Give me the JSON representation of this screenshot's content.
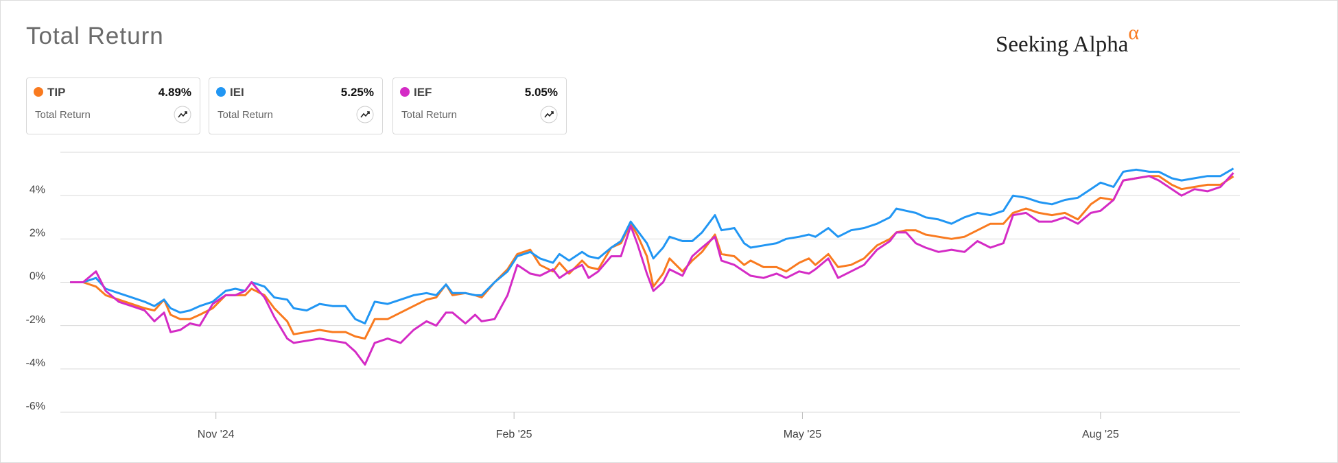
{
  "chart_data": {
    "type": "line",
    "title": "Total Return",
    "brand": "Seeking Alpha",
    "brand_mark": "α",
    "legend_caption": "Total Return",
    "x": [
      3,
      7,
      11,
      14,
      18,
      22,
      26,
      29,
      32,
      34,
      37,
      40,
      43,
      47,
      51,
      54,
      57,
      59,
      63,
      66,
      70,
      72,
      76,
      80,
      84,
      88,
      91,
      94,
      97,
      101,
      105,
      109,
      113,
      116,
      119,
      121,
      125,
      128,
      130,
      134,
      138,
      141,
      145,
      148,
      152,
      154,
      157,
      161,
      163,
      166,
      170,
      173,
      176,
      178,
      181,
      183,
      186,
      188,
      192,
      195,
      198,
      202,
      204,
      208,
      211,
      213,
      217,
      221,
      224,
      228,
      231,
      233,
      237,
      240,
      244,
      248,
      252,
      256,
      258,
      261,
      264,
      267,
      271,
      275,
      279,
      283,
      287,
      291,
      294,
      298,
      302,
      306,
      310,
      314,
      318,
      321,
      325,
      328,
      332,
      336,
      339,
      343,
      346,
      350,
      354,
      358,
      362
    ],
    "xlim": [
      0,
      364
    ],
    "xticks": [
      {
        "value": 48,
        "label": "Nov '24"
      },
      {
        "value": 140,
        "label": "Feb '25"
      },
      {
        "value": 229,
        "label": "May '25"
      },
      {
        "value": 321,
        "label": "Aug '25"
      }
    ],
    "ylim": [
      -6,
      6
    ],
    "yticks": [
      {
        "value": -6,
        "label": "-6%"
      },
      {
        "value": -4,
        "label": "-4%"
      },
      {
        "value": -2,
        "label": "-2%"
      },
      {
        "value": 0,
        "label": "0%"
      },
      {
        "value": 2,
        "label": "2%"
      },
      {
        "value": 4,
        "label": "4%"
      }
    ],
    "grid": true,
    "series": [
      {
        "name": "TIP",
        "color": "#f97a1f",
        "total_return_label": "4.89%",
        "values": [
          0,
          0,
          -0.2,
          -0.6,
          -0.8,
          -1.0,
          -1.2,
          -1.3,
          -0.8,
          -1.5,
          -1.7,
          -1.7,
          -1.5,
          -1.2,
          -0.6,
          -0.6,
          -0.6,
          -0.3,
          -0.6,
          -1.2,
          -1.8,
          -2.4,
          -2.3,
          -2.2,
          -2.3,
          -2.3,
          -2.5,
          -2.6,
          -1.7,
          -1.7,
          -1.4,
          -1.1,
          -0.8,
          -0.7,
          -0.1,
          -0.6,
          -0.5,
          -0.6,
          -0.7,
          0,
          0.6,
          1.3,
          1.5,
          0.8,
          0.5,
          0.9,
          0.4,
          1.0,
          0.7,
          0.6,
          1.6,
          1.8,
          2.7,
          2.2,
          1.2,
          -0.2,
          0.4,
          1.1,
          0.5,
          1.0,
          1.4,
          2.2,
          1.3,
          1.2,
          0.8,
          1.0,
          0.7,
          0.7,
          0.5,
          0.9,
          1.1,
          0.8,
          1.3,
          0.7,
          0.8,
          1.1,
          1.7,
          2.0,
          2.3,
          2.4,
          2.4,
          2.2,
          2.1,
          2.0,
          2.1,
          2.4,
          2.7,
          2.7,
          3.2,
          3.4,
          3.2,
          3.1,
          3.2,
          2.9,
          3.6,
          3.9,
          3.8,
          4.7,
          4.8,
          4.9,
          4.9,
          4.5,
          4.3,
          4.4,
          4.5,
          4.5,
          4.89
        ]
      },
      {
        "name": "IEI",
        "color": "#2196f3",
        "total_return_label": "5.25%",
        "values": [
          0,
          0,
          0.2,
          -0.3,
          -0.5,
          -0.7,
          -0.9,
          -1.1,
          -0.8,
          -1.2,
          -1.4,
          -1.3,
          -1.1,
          -0.9,
          -0.4,
          -0.3,
          -0.4,
          0,
          -0.2,
          -0.7,
          -0.8,
          -1.2,
          -1.3,
          -1.0,
          -1.1,
          -1.1,
          -1.7,
          -1.9,
          -0.9,
          -1.0,
          -0.8,
          -0.6,
          -0.5,
          -0.6,
          -0.1,
          -0.5,
          -0.5,
          -0.6,
          -0.6,
          0,
          0.5,
          1.2,
          1.4,
          1.1,
          0.9,
          1.3,
          1.0,
          1.4,
          1.2,
          1.1,
          1.6,
          1.9,
          2.8,
          2.4,
          1.8,
          1.1,
          1.6,
          2.1,
          1.9,
          1.9,
          2.3,
          3.1,
          2.4,
          2.5,
          1.8,
          1.6,
          1.7,
          1.8,
          2.0,
          2.1,
          2.2,
          2.1,
          2.5,
          2.1,
          2.4,
          2.5,
          2.7,
          3.0,
          3.4,
          3.3,
          3.2,
          3.0,
          2.9,
          2.7,
          3.0,
          3.2,
          3.1,
          3.3,
          4.0,
          3.9,
          3.7,
          3.6,
          3.8,
          3.9,
          4.3,
          4.6,
          4.4,
          5.1,
          5.2,
          5.1,
          5.1,
          4.8,
          4.7,
          4.8,
          4.9,
          4.9,
          5.25
        ]
      },
      {
        "name": "IEF",
        "color": "#d42bc5",
        "total_return_label": "5.05%",
        "values": [
          0,
          0,
          0.5,
          -0.4,
          -0.9,
          -1.1,
          -1.3,
          -1.8,
          -1.4,
          -2.3,
          -2.2,
          -1.9,
          -2.0,
          -1.0,
          -0.6,
          -0.6,
          -0.4,
          0,
          -0.7,
          -1.6,
          -2.6,
          -2.8,
          -2.7,
          -2.6,
          -2.7,
          -2.8,
          -3.2,
          -3.8,
          -2.8,
          -2.6,
          -2.8,
          -2.2,
          -1.8,
          -2.0,
          -1.4,
          -1.4,
          -1.9,
          -1.5,
          -1.8,
          -1.7,
          -0.6,
          0.8,
          0.4,
          0.3,
          0.6,
          0.2,
          0.5,
          0.8,
          0.2,
          0.5,
          1.2,
          1.2,
          2.6,
          1.8,
          0.4,
          -0.4,
          0,
          0.6,
          0.3,
          1.2,
          1.6,
          2.1,
          1.0,
          0.8,
          0.5,
          0.3,
          0.2,
          0.4,
          0.2,
          0.5,
          0.4,
          0.6,
          1.1,
          0.2,
          0.5,
          0.8,
          1.5,
          1.9,
          2.3,
          2.3,
          1.8,
          1.6,
          1.4,
          1.5,
          1.4,
          1.9,
          1.6,
          1.8,
          3.1,
          3.2,
          2.8,
          2.8,
          3.0,
          2.7,
          3.2,
          3.3,
          3.8,
          4.7,
          4.8,
          4.9,
          4.7,
          4.3,
          4.0,
          4.3,
          4.2,
          4.4,
          5.05
        ]
      }
    ]
  }
}
